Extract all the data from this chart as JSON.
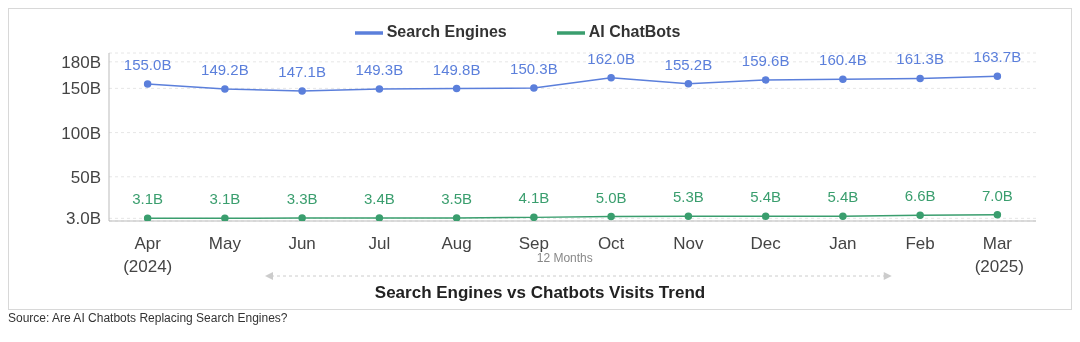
{
  "chart_data": {
    "type": "line",
    "title": "Search Engines vs Chatbots Visits Trend",
    "categories": [
      "Apr",
      "May",
      "Jun",
      "Jul",
      "Aug",
      "Sep",
      "Oct",
      "Nov",
      "Dec",
      "Jan",
      "Feb",
      "Mar"
    ],
    "series": [
      {
        "name": "Search Engines",
        "color": "#5b7fdb",
        "values": [
          155.0,
          149.2,
          147.1,
          149.3,
          149.8,
          150.3,
          162.0,
          155.2,
          159.6,
          160.4,
          161.3,
          163.7
        ],
        "value_labels": [
          "155.0B",
          "149.2B",
          "147.1B",
          "149.3B",
          "149.8B",
          "150.3B",
          "162.0B",
          "155.2B",
          "159.6B",
          "160.4B",
          "161.3B",
          "163.7B"
        ]
      },
      {
        "name": "AI ChatBots",
        "color": "#3a9e6e",
        "values": [
          3.1,
          3.1,
          3.3,
          3.4,
          3.5,
          4.1,
          5.0,
          5.3,
          5.4,
          5.4,
          6.6,
          7.0
        ],
        "value_labels": [
          "3.1B",
          "3.1B",
          "3.3B",
          "3.4B",
          "3.5B",
          "4.1B",
          "5.0B",
          "5.3B",
          "5.4B",
          "5.4B",
          "6.6B",
          "7.0B"
        ]
      }
    ],
    "ylim": [
      0,
      190
    ],
    "yticks": [
      {
        "value": 3,
        "label": "3.0B"
      },
      {
        "value": 50,
        "label": "50B"
      },
      {
        "value": 100,
        "label": "100B"
      },
      {
        "value": 150,
        "label": "150B"
      },
      {
        "value": 180,
        "label": "180B"
      }
    ],
    "grid": "y",
    "legend": "top",
    "marker": "circle",
    "line_style": "solid",
    "annotations": [
      "(2024)",
      "12 Months",
      "(2025)",
      "Source:   Are AI Chatbots Replacing Search Engines?"
    ]
  }
}
